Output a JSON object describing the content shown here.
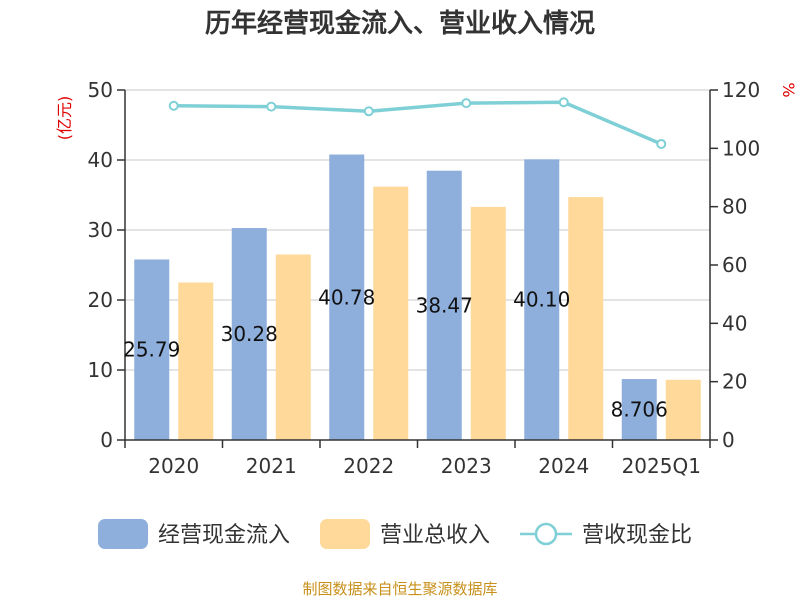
{
  "chart_data": {
    "type": "bar",
    "title": "历年经营现金流入、营业收入情况",
    "categories": [
      "2020",
      "2021",
      "2022",
      "2023",
      "2024",
      "2025Q1"
    ],
    "left_axis": {
      "unit": "(亿元)",
      "ylim": [
        0,
        50
      ],
      "ticks": [
        0,
        10,
        20,
        30,
        40,
        50
      ]
    },
    "right_axis": {
      "unit": "%",
      "ylim": [
        0,
        120
      ],
      "ticks": [
        0,
        20,
        40,
        60,
        80,
        100,
        120
      ]
    },
    "series": [
      {
        "name": "经营现金流入",
        "kind": "bar",
        "axis": "left",
        "color": "#8eaedb",
        "values": [
          25.79,
          30.28,
          40.78,
          38.47,
          40.1,
          8.706
        ],
        "labels": [
          "25.79",
          "30.28",
          "40.78",
          "38.47",
          "40.10",
          "8.706"
        ]
      },
      {
        "name": "营业总收入",
        "kind": "bar",
        "axis": "left",
        "color": "#ffd999",
        "values": [
          22.5,
          26.5,
          36.2,
          33.3,
          34.7,
          8.6
        ]
      },
      {
        "name": "营收现金比",
        "kind": "line",
        "axis": "right",
        "color": "#7fd0d6",
        "values": [
          114.6,
          114.3,
          112.7,
          115.5,
          115.8,
          101.5
        ]
      }
    ],
    "grid": true,
    "legend": "bottom"
  },
  "footer": {
    "source": "制图数据来自恒生聚源数据库"
  }
}
